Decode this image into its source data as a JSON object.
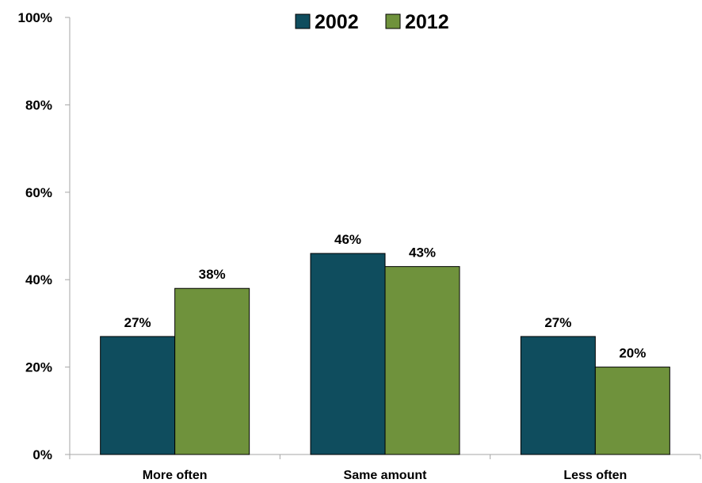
{
  "chart_data": {
    "type": "bar",
    "categories": [
      "More often",
      "Same amount",
      "Less often"
    ],
    "series": [
      {
        "name": "2002",
        "values": [
          27,
          46,
          27
        ],
        "color": "#0f4d5e"
      },
      {
        "name": "2012",
        "values": [
          38,
          43,
          20
        ],
        "color": "#6f923c"
      }
    ],
    "value_labels": [
      [
        "27%",
        "46%",
        "27%"
      ],
      [
        "38%",
        "43%",
        "20%"
      ]
    ],
    "y_ticks": [
      0,
      20,
      40,
      60,
      80,
      100
    ],
    "y_tick_labels": [
      "0%",
      "20%",
      "40%",
      "60%",
      "80%",
      "100%"
    ],
    "ylim": [
      0,
      100
    ],
    "grid": false,
    "legend_position": "top-center",
    "title": "",
    "xlabel": "",
    "ylabel": ""
  }
}
